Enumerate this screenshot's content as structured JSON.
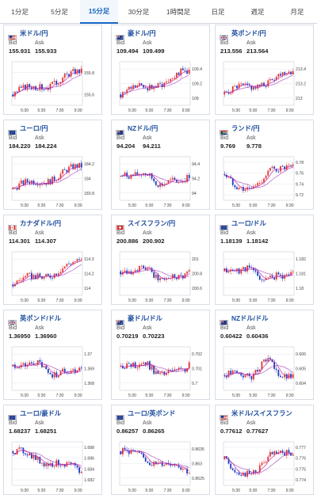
{
  "tabs": [
    {
      "label": "1分足",
      "active": false
    },
    {
      "label": "5分足",
      "active": false
    },
    {
      "label": "15分足",
      "active": true
    },
    {
      "label": "30分足",
      "active": false
    },
    {
      "label": "1時間足",
      "active": false
    },
    {
      "label": "日足",
      "active": false
    },
    {
      "label": "週足",
      "active": false
    },
    {
      "label": "月足",
      "active": false
    }
  ],
  "labels": {
    "bid": "Bid",
    "ask": "Ask"
  },
  "colors": {
    "up": "#e53935",
    "down": "#1f3fbf",
    "ma_fast": "#c02aa8",
    "ma_slow": "#9c27b0",
    "grid": "#e3e7ee",
    "name": "#1f4fa0"
  },
  "pairs": [
    {
      "name": "米ドル/円",
      "flag": "us",
      "bid": "155.931",
      "ask": "155.933",
      "yticks": [
        "155.8",
        "155.6"
      ],
      "xticks": [
        "5:30",
        "5:30",
        "7:30",
        "9:30"
      ],
      "trend": "up"
    },
    {
      "name": "豪ドル/円",
      "flag": "au",
      "bid": "109.494",
      "ask": "109.499",
      "yticks": [
        "109.4",
        "109.2",
        "109"
      ],
      "xticks": [
        "5:30",
        "5:30",
        "7:30",
        "9:30"
      ],
      "trend": "up"
    },
    {
      "name": "英ポンド/円",
      "flag": "uk",
      "bid": "213.556",
      "ask": "213.564",
      "yticks": [
        "213.4",
        "213.2",
        "213"
      ],
      "xticks": [
        "5:30",
        "5:30",
        "7:30",
        "9:30"
      ],
      "trend": "up"
    },
    {
      "name": "ユーロ/円",
      "flag": "eu",
      "bid": "184.220",
      "ask": "184.224",
      "yticks": [
        "184.2",
        "184",
        "183.8"
      ],
      "xticks": [
        "5:30",
        "5:30",
        "7:30",
        "9:30"
      ],
      "trend": "up"
    },
    {
      "name": "NZドル/円",
      "flag": "nz",
      "bid": "94.204",
      "ask": "94.211",
      "yticks": [
        "94.4",
        "94.2",
        "94"
      ],
      "xticks": [
        "5:30",
        "5:30",
        "7:30",
        "9:30"
      ],
      "trend": "flat"
    },
    {
      "name": "ランド/円",
      "flag": "za",
      "bid": "9.769",
      "ask": "9.778",
      "yticks": [
        "9.78",
        "9.76",
        "9.74",
        "9.72"
      ],
      "xticks": [
        "5:30",
        "5:30",
        "7:30",
        "9:30"
      ],
      "trend": "dip"
    },
    {
      "name": "カナダドル/円",
      "flag": "ca",
      "bid": "114.301",
      "ask": "114.307",
      "yticks": [
        "114.3",
        "114.2",
        "114"
      ],
      "xticks": [
        "5:30",
        "5:30",
        "7:30",
        "9:30"
      ],
      "trend": "up"
    },
    {
      "name": "スイスフラン/円",
      "flag": "ch",
      "bid": "200.886",
      "ask": "200.902",
      "yticks": [
        "201",
        "200.8",
        "200.6"
      ],
      "xticks": [
        "5:30",
        "5:30",
        "7:30",
        "9:30"
      ],
      "trend": "flat"
    },
    {
      "name": "ユーロ/ドル",
      "flag": "eu",
      "bid": "1.18139",
      "ask": "1.18142",
      "yticks": [
        "1.182",
        "1.181",
        "1.18"
      ],
      "xticks": [
        "5:30",
        "5:30",
        "7:30",
        "9:30"
      ],
      "trend": "flat"
    },
    {
      "name": "英ポンド/ドル",
      "flag": "uk",
      "bid": "1.36950",
      "ask": "1.36960",
      "yticks": [
        "1.37",
        "1.369",
        "1.368"
      ],
      "xticks": [
        "5:30",
        "5:30",
        "7:30",
        "9:30"
      ],
      "trend": "flat"
    },
    {
      "name": "豪ドル/ドル",
      "flag": "au",
      "bid": "0.70219",
      "ask": "0.70223",
      "yticks": [
        "0.702",
        "0.701",
        "0.7"
      ],
      "xticks": [
        "5:30",
        "5:30",
        "7:30",
        "9:30"
      ],
      "trend": "flat"
    },
    {
      "name": "NZドル/ドル",
      "flag": "nz",
      "bid": "0.60422",
      "ask": "0.60436",
      "yticks": [
        "0.606",
        "0.605",
        "0.604"
      ],
      "xticks": [
        "5:30",
        "5:30",
        "7:30",
        "9:30"
      ],
      "trend": "peak"
    },
    {
      "name": "ユーロ/豪ドル",
      "flag": "eu",
      "bid": "1.68237",
      "ask": "1.68251",
      "yticks": [
        "1.688",
        "1.686",
        "1.684",
        "1.682"
      ],
      "xticks": [
        "5:30",
        "5:30",
        "7:30",
        "9:30"
      ],
      "trend": "down"
    },
    {
      "name": "ユーロ/英ポンド",
      "flag": "eu",
      "bid": "0.86257",
      "ask": "0.86265",
      "yticks": [
        "0.8635",
        "0.863",
        "0.8625"
      ],
      "xticks": [
        "5:30",
        "5:30",
        "7:30",
        "9:30"
      ],
      "trend": "down"
    },
    {
      "name": "米ドル/スイスフラン",
      "flag": "us",
      "bid": "0.77612",
      "ask": "0.77627",
      "yticks": [
        "0.777",
        "0.776",
        "0.775",
        "0.774"
      ],
      "xticks": [
        "5:30",
        "5:30",
        "7:30",
        "9:30"
      ],
      "trend": "dip"
    }
  ]
}
